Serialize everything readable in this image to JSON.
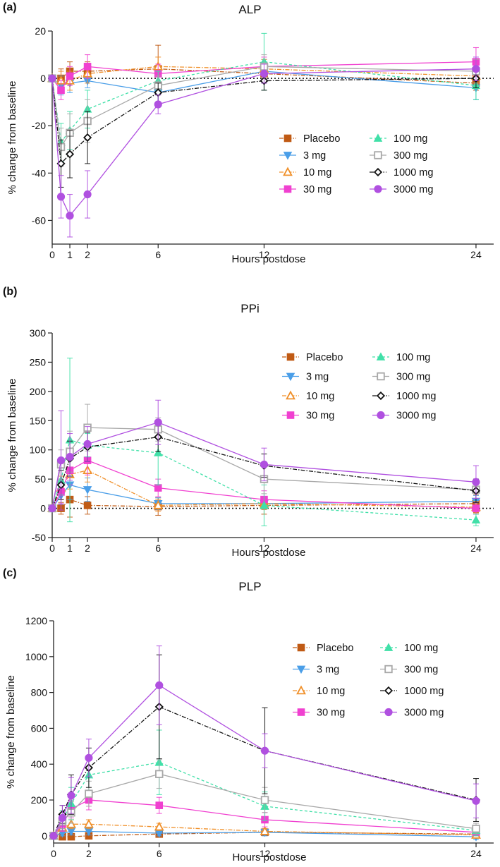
{
  "colors": {
    "Placebo": "#c05a14",
    "3 mg": "#4a9ee8",
    "10 mg": "#f0902a",
    "30 mg": "#f040d0",
    "100 mg": "#40e0a8",
    "300 mg": "#a8a8a8",
    "1000 mg": "#111111",
    "3000 mg": "#b050e0"
  },
  "chart_data": [
    {
      "type": "line",
      "panel_label": "(a)",
      "title": "ALP",
      "xlabel": "Hours postdose",
      "ylabel": "% change from baseline",
      "xlim": [
        0,
        25
      ],
      "ylim": [
        -70,
        20
      ],
      "xticks": [
        0,
        1,
        2,
        6,
        12,
        24
      ],
      "yticks": [
        -60,
        -40,
        -20,
        0,
        20
      ],
      "baseline": 0,
      "legend_position": "bottom-right",
      "x": [
        0,
        0.5,
        1,
        2,
        6,
        12,
        24
      ],
      "series": [
        {
          "name": "Placebo",
          "marker": "square",
          "style": "dashdot",
          "values": [
            0,
            0,
            3,
            3,
            4,
            2,
            -2
          ],
          "errors": [
            0,
            4,
            4,
            4,
            10,
            4,
            3
          ]
        },
        {
          "name": "3 mg",
          "marker": "triangle-down",
          "style": "solid",
          "values": [
            0,
            -3,
            -2,
            -1,
            -6,
            3,
            -4
          ],
          "errors": [
            0,
            4,
            4,
            3,
            4,
            5,
            5
          ]
        },
        {
          "name": "10 mg",
          "marker": "triangle-up-open",
          "style": "dashdot",
          "values": [
            0,
            -1,
            -1,
            2,
            5,
            4,
            1
          ],
          "errors": [
            0,
            4,
            4,
            4,
            4,
            4,
            4
          ]
        },
        {
          "name": "30 mg",
          "marker": "square",
          "style": "solid",
          "values": [
            0,
            -5,
            1,
            5,
            2,
            5,
            7
          ],
          "errors": [
            0,
            4,
            4,
            5,
            4,
            4,
            6
          ]
        },
        {
          "name": "100 mg",
          "marker": "triangle-up",
          "style": "dashed",
          "values": [
            0,
            -27,
            -22,
            -13,
            -1,
            7,
            -3
          ],
          "errors": [
            0,
            8,
            8,
            8,
            4,
            12,
            6
          ]
        },
        {
          "name": "300 mg",
          "marker": "square-open",
          "style": "solid",
          "values": [
            0,
            -29,
            -23,
            -18,
            -3,
            5,
            3
          ],
          "errors": [
            0,
            8,
            8,
            9,
            4,
            5,
            5
          ]
        },
        {
          "name": "1000 mg",
          "marker": "diamond-open",
          "style": "dashdot",
          "values": [
            0,
            -36,
            -32,
            -25,
            -6,
            -1,
            0
          ],
          "errors": [
            0,
            10,
            10,
            11,
            4,
            4,
            4
          ]
        },
        {
          "name": "3000 mg",
          "marker": "circle",
          "style": "solid",
          "values": [
            0,
            -50,
            -58,
            -49,
            -11,
            2,
            4
          ],
          "errors": [
            0,
            9,
            9,
            10,
            4,
            4,
            5
          ]
        }
      ]
    },
    {
      "type": "line",
      "panel_label": "(b)",
      "title": "PPi",
      "xlabel": "Hours postdose",
      "ylabel": "% change from baseline",
      "xlim": [
        0,
        25
      ],
      "ylim": [
        -50,
        300
      ],
      "xticks": [
        0,
        1,
        2,
        6,
        12,
        24
      ],
      "yticks": [
        -50,
        0,
        50,
        100,
        150,
        200,
        250,
        300
      ],
      "baseline": 0,
      "legend_position": "top-right",
      "x": [
        0,
        0.5,
        1,
        2,
        6,
        12,
        24
      ],
      "series": [
        {
          "name": "Placebo",
          "marker": "square",
          "style": "dashdot",
          "values": [
            0,
            0,
            15,
            5,
            3,
            5,
            8
          ],
          "errors": [
            0,
            10,
            30,
            15,
            15,
            15,
            15
          ]
        },
        {
          "name": "3 mg",
          "marker": "triangle-down",
          "style": "solid",
          "values": [
            0,
            22,
            40,
            32,
            8,
            8,
            12
          ],
          "errors": [
            0,
            15,
            25,
            20,
            10,
            10,
            10
          ]
        },
        {
          "name": "10 mg",
          "marker": "triangle-up-open",
          "style": "dashdot",
          "values": [
            0,
            35,
            58,
            65,
            5,
            8,
            2
          ],
          "errors": [
            0,
            20,
            25,
            20,
            10,
            10,
            10
          ]
        },
        {
          "name": "30 mg",
          "marker": "square",
          "style": "solid",
          "values": [
            0,
            28,
            65,
            82,
            35,
            15,
            0
          ],
          "errors": [
            0,
            20,
            25,
            25,
            15,
            15,
            10
          ]
        },
        {
          "name": "100 mg",
          "marker": "triangle-up",
          "style": "dashed",
          "values": [
            0,
            48,
            117,
            108,
            95,
            5,
            -20
          ],
          "errors": [
            0,
            25,
            140,
            20,
            55,
            35,
            10
          ]
        },
        {
          "name": "300 mg",
          "marker": "square-open",
          "style": "solid",
          "values": [
            0,
            75,
            97,
            138,
            135,
            50,
            32
          ],
          "errors": [
            0,
            25,
            35,
            40,
            20,
            25,
            15
          ]
        },
        {
          "name": "1000 mg",
          "marker": "diamond-open",
          "style": "dashdot",
          "values": [
            0,
            40,
            85,
            105,
            122,
            73,
            30
          ],
          "errors": [
            0,
            25,
            30,
            25,
            25,
            20,
            20
          ]
        },
        {
          "name": "3000 mg",
          "marker": "circle",
          "style": "solid",
          "values": [
            0,
            82,
            88,
            110,
            147,
            75,
            45
          ],
          "errors": [
            0,
            85,
            40,
            30,
            38,
            28,
            28
          ]
        }
      ]
    },
    {
      "type": "line",
      "panel_label": "(c)",
      "title": "PLP",
      "xlabel": "Hours postdose",
      "ylabel": "% change from baseline",
      "xlim": [
        0,
        25
      ],
      "ylim": [
        -40,
        1200
      ],
      "xticks": [
        0,
        2,
        6,
        12,
        24
      ],
      "yticks": [
        0,
        200,
        400,
        600,
        800,
        1000,
        1200
      ],
      "baseline": null,
      "legend_position": "top-right",
      "x": [
        0,
        0.5,
        1,
        2,
        6,
        12,
        24
      ],
      "series": [
        {
          "name": "Placebo",
          "marker": "square",
          "style": "dashdot",
          "values": [
            0,
            -5,
            -5,
            0,
            10,
            20,
            10
          ],
          "errors": [
            0,
            15,
            15,
            15,
            15,
            15,
            15
          ]
        },
        {
          "name": "3 mg",
          "marker": "triangle-down",
          "style": "solid",
          "values": [
            0,
            15,
            25,
            25,
            15,
            20,
            -5
          ],
          "errors": [
            0,
            15,
            20,
            20,
            15,
            20,
            15
          ]
        },
        {
          "name": "10 mg",
          "marker": "triangle-up-open",
          "style": "dashdot",
          "values": [
            0,
            45,
            65,
            65,
            50,
            25,
            5
          ],
          "errors": [
            0,
            20,
            25,
            25,
            20,
            15,
            15
          ]
        },
        {
          "name": "30 mg",
          "marker": "square",
          "style": "solid",
          "values": [
            0,
            65,
            150,
            200,
            170,
            90,
            20
          ],
          "errors": [
            0,
            40,
            50,
            55,
            45,
            40,
            20
          ]
        },
        {
          "name": "100 mg",
          "marker": "triangle-up",
          "style": "dashed",
          "values": [
            0,
            90,
            180,
            340,
            410,
            165,
            30
          ],
          "errors": [
            0,
            50,
            90,
            90,
            180,
            80,
            30
          ]
        },
        {
          "name": "300 mg",
          "marker": "square-open",
          "style": "solid",
          "values": [
            0,
            80,
            130,
            235,
            345,
            200,
            40
          ],
          "errors": [
            0,
            40,
            60,
            70,
            80,
            70,
            30
          ]
        },
        {
          "name": "1000 mg",
          "marker": "diamond-open",
          "style": "dashdot",
          "values": [
            0,
            120,
            230,
            380,
            720,
            475,
            200
          ],
          "errors": [
            0,
            50,
            110,
            110,
            290,
            240,
            120
          ]
        },
        {
          "name": "3000 mg",
          "marker": "circle",
          "style": "solid",
          "values": [
            0,
            100,
            225,
            435,
            840,
            475,
            195
          ],
          "errors": [
            0,
            70,
            100,
            105,
            220,
            95,
            95
          ]
        }
      ]
    }
  ]
}
